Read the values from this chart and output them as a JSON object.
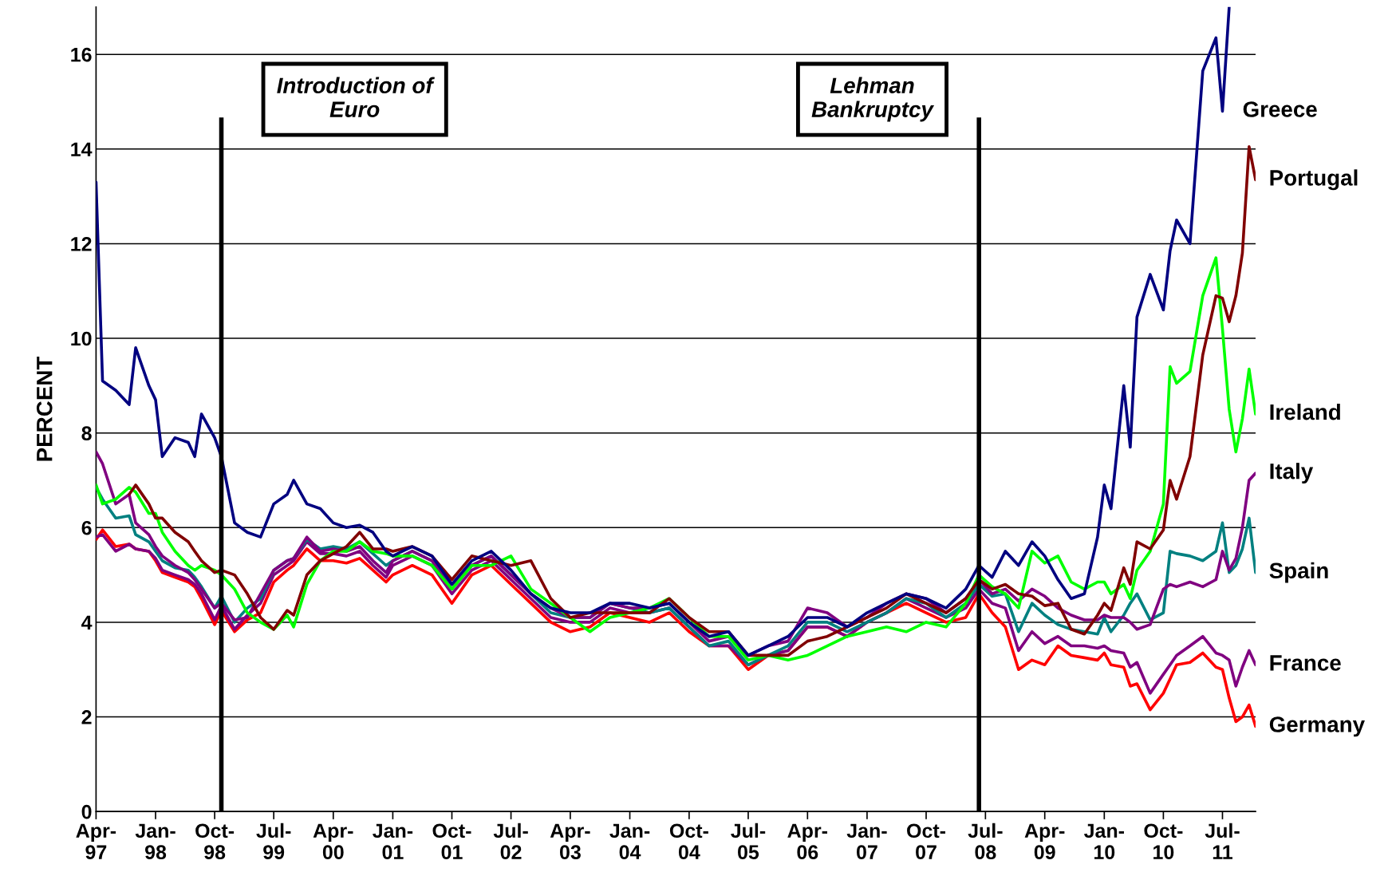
{
  "chart_data": {
    "type": "line",
    "ylabel": "PERCENT",
    "x": [
      "1997-04",
      "1997-05",
      "1997-07",
      "1997-09",
      "1997-10",
      "1997-12",
      "1998-01",
      "1998-02",
      "1998-04",
      "1998-06",
      "1998-07",
      "1998-08",
      "1998-10",
      "1998-11",
      "1999-01",
      "1999-03",
      "1999-05",
      "1999-07",
      "1999-09",
      "1999-10",
      "1999-12",
      "2000-02",
      "2000-04",
      "2000-06",
      "2000-08",
      "2000-10",
      "2000-12",
      "2001-01",
      "2001-04",
      "2001-07",
      "2001-10",
      "2002-01",
      "2002-04",
      "2002-07",
      "2002-10",
      "2003-01",
      "2003-04",
      "2003-07",
      "2003-10",
      "2004-01",
      "2004-04",
      "2004-07",
      "2004-10",
      "2005-01",
      "2005-04",
      "2005-07",
      "2005-10",
      "2006-01",
      "2006-04",
      "2006-07",
      "2006-10",
      "2007-01",
      "2007-04",
      "2007-07",
      "2007-10",
      "2008-01",
      "2008-04",
      "2008-06",
      "2008-08",
      "2008-10",
      "2008-12",
      "2009-02",
      "2009-04",
      "2009-06",
      "2009-08",
      "2009-10",
      "2009-12",
      "2010-01",
      "2010-02",
      "2010-04",
      "2010-05",
      "2010-06",
      "2010-08",
      "2010-10",
      "2010-11",
      "2010-12",
      "2011-02",
      "2011-04",
      "2011-06",
      "2011-07",
      "2011-08",
      "2011-09",
      "2011-10",
      "2011-11",
      "2011-12"
    ],
    "series": [
      {
        "name": "Greece",
        "color": "#000080",
        "values": [
          13.3,
          9.1,
          8.9,
          8.6,
          9.8,
          9.0,
          8.7,
          7.5,
          7.9,
          7.8,
          7.5,
          8.4,
          7.9,
          7.5,
          6.1,
          5.9,
          5.8,
          6.5,
          6.7,
          7.0,
          6.5,
          6.4,
          6.1,
          6.0,
          6.05,
          5.9,
          5.5,
          5.4,
          5.6,
          5.4,
          4.8,
          5.3,
          5.5,
          5.1,
          4.6,
          4.3,
          4.2,
          4.2,
          4.4,
          4.4,
          4.3,
          4.4,
          4.0,
          3.7,
          3.8,
          3.3,
          3.5,
          3.7,
          4.1,
          4.1,
          3.9,
          4.2,
          4.4,
          4.6,
          4.5,
          4.3,
          4.7,
          5.2,
          4.95,
          5.5,
          5.2,
          5.7,
          5.4,
          4.9,
          4.5,
          4.6,
          5.8,
          6.9,
          6.4,
          9.0,
          7.7,
          10.45,
          11.35,
          10.6,
          11.85,
          12.5,
          12.0,
          15.65,
          16.35,
          14.8,
          17,
          null,
          null,
          null,
          null
        ]
      },
      {
        "name": "Portugal",
        "color": "#800000",
        "values": [
          null,
          null,
          null,
          6.7,
          6.9,
          6.5,
          6.2,
          6.2,
          5.9,
          5.7,
          5.5,
          5.3,
          5.05,
          5.1,
          5.0,
          4.6,
          4.1,
          3.85,
          4.25,
          4.15,
          5.0,
          5.3,
          5.45,
          5.6,
          5.9,
          5.55,
          5.55,
          5.5,
          5.6,
          5.4,
          4.9,
          5.4,
          5.3,
          5.2,
          5.3,
          4.5,
          4.1,
          4.2,
          4.2,
          4.2,
          4.2,
          4.5,
          4.1,
          3.8,
          3.8,
          3.3,
          3.3,
          3.3,
          3.6,
          3.7,
          3.9,
          4.1,
          4.3,
          4.6,
          4.4,
          4.2,
          4.5,
          4.9,
          4.7,
          4.8,
          4.6,
          4.55,
          4.35,
          4.4,
          3.85,
          3.75,
          4.15,
          4.4,
          4.25,
          5.15,
          4.8,
          5.7,
          5.55,
          5.95,
          7.0,
          6.6,
          7.5,
          9.65,
          10.9,
          10.85,
          10.35,
          10.9,
          11.8,
          14.05,
          13.35
        ]
      },
      {
        "name": "Ireland",
        "color": "#00ff00",
        "values": [
          6.9,
          6.5,
          6.6,
          6.85,
          6.75,
          6.3,
          6.3,
          5.9,
          5.5,
          5.2,
          5.1,
          5.2,
          5.1,
          5.0,
          4.7,
          4.2,
          4.0,
          3.85,
          4.15,
          3.9,
          4.8,
          5.3,
          5.5,
          5.5,
          5.7,
          5.5,
          5.45,
          5.4,
          5.4,
          5.2,
          4.7,
          5.2,
          5.2,
          5.4,
          4.7,
          4.4,
          4.1,
          3.8,
          4.1,
          4.2,
          4.3,
          4.5,
          4.1,
          3.7,
          3.7,
          3.2,
          3.3,
          3.2,
          3.3,
          3.5,
          3.7,
          3.8,
          3.9,
          3.8,
          4.0,
          3.9,
          4.4,
          5.0,
          4.75,
          4.6,
          4.3,
          5.5,
          5.25,
          5.4,
          4.85,
          4.7,
          4.85,
          4.85,
          4.6,
          4.8,
          4.5,
          5.1,
          5.5,
          6.5,
          9.4,
          9.05,
          9.3,
          10.9,
          11.7,
          10.2,
          8.5,
          7.6,
          8.3,
          9.35,
          8.4
        ]
      },
      {
        "name": "Italy",
        "color": "#800080",
        "values": [
          7.6,
          7.35,
          6.5,
          6.7,
          6.1,
          5.85,
          5.6,
          5.4,
          5.2,
          5.05,
          4.9,
          4.7,
          4.3,
          4.4,
          4.05,
          4.1,
          4.6,
          5.1,
          5.3,
          5.35,
          5.8,
          5.5,
          5.55,
          5.5,
          5.6,
          5.3,
          5.05,
          5.3,
          5.5,
          5.3,
          4.8,
          5.2,
          5.4,
          5.0,
          4.6,
          4.3,
          4.1,
          4.1,
          4.4,
          4.3,
          4.3,
          4.4,
          4.0,
          3.6,
          3.7,
          3.3,
          3.5,
          3.6,
          4.3,
          4.2,
          3.9,
          4.1,
          4.4,
          4.6,
          4.5,
          4.2,
          4.5,
          4.9,
          4.6,
          4.7,
          4.45,
          4.7,
          4.55,
          4.3,
          4.15,
          4.05,
          4.05,
          4.15,
          4.1,
          4.1,
          4.0,
          3.85,
          3.95,
          4.7,
          4.8,
          4.75,
          4.85,
          4.75,
          4.9,
          5.5,
          5.1,
          5.35,
          6.0,
          7.0,
          7.15
        ]
      },
      {
        "name": "Spain",
        "color": "#008080",
        "values": [
          6.85,
          6.6,
          6.2,
          6.25,
          5.85,
          5.7,
          5.5,
          5.3,
          5.15,
          5.1,
          4.95,
          4.75,
          4.3,
          4.55,
          4.0,
          4.3,
          4.5,
          5.1,
          5.3,
          5.35,
          5.75,
          5.55,
          5.6,
          5.55,
          5.7,
          5.45,
          5.2,
          5.3,
          5.5,
          5.3,
          4.7,
          5.2,
          5.4,
          5.0,
          4.6,
          4.2,
          4.1,
          4.1,
          4.4,
          4.3,
          4.2,
          4.3,
          3.9,
          3.5,
          3.6,
          3.1,
          3.3,
          3.5,
          4.0,
          4.0,
          3.8,
          4.0,
          4.2,
          4.5,
          4.4,
          4.1,
          4.4,
          4.8,
          4.55,
          4.6,
          3.8,
          4.4,
          4.15,
          3.95,
          3.85,
          3.8,
          3.75,
          4.1,
          3.8,
          4.15,
          4.4,
          4.6,
          4.05,
          4.2,
          5.5,
          5.45,
          5.4,
          5.3,
          5.5,
          6.1,
          5.05,
          5.2,
          5.55,
          6.2,
          5.05
        ]
      },
      {
        "name": "France",
        "color": "#800080",
        "values": [
          5.8,
          5.85,
          5.5,
          5.65,
          5.55,
          5.5,
          5.35,
          5.1,
          5.0,
          4.9,
          4.8,
          4.6,
          4.05,
          4.35,
          3.85,
          4.15,
          4.4,
          5.0,
          5.2,
          5.3,
          5.7,
          5.45,
          5.45,
          5.4,
          5.5,
          5.2,
          4.95,
          5.2,
          5.4,
          5.2,
          4.6,
          5.1,
          5.3,
          4.9,
          4.5,
          4.1,
          4.0,
          4.0,
          4.3,
          4.2,
          4.2,
          4.3,
          3.9,
          3.5,
          3.5,
          3.1,
          3.3,
          3.4,
          3.9,
          3.9,
          3.7,
          4.0,
          4.2,
          4.5,
          4.3,
          4.1,
          4.3,
          4.7,
          4.4,
          4.3,
          3.4,
          3.8,
          3.55,
          3.7,
          3.5,
          3.5,
          3.45,
          3.5,
          3.4,
          3.35,
          3.05,
          3.15,
          2.5,
          2.9,
          3.1,
          3.3,
          3.5,
          3.7,
          3.35,
          3.3,
          3.2,
          2.65,
          3.05,
          3.4,
          3.1
        ]
      },
      {
        "name": "Germany",
        "color": "#ff0000",
        "values": [
          5.75,
          5.95,
          5.6,
          5.65,
          5.55,
          5.5,
          5.3,
          5.05,
          4.95,
          4.85,
          4.75,
          4.5,
          3.95,
          4.25,
          3.8,
          4.05,
          4.2,
          4.85,
          5.1,
          5.2,
          5.55,
          5.3,
          5.3,
          5.25,
          5.35,
          5.1,
          4.85,
          5.0,
          5.2,
          5.0,
          4.4,
          5.0,
          5.2,
          4.8,
          4.4,
          4.0,
          3.8,
          3.9,
          4.2,
          4.1,
          4.0,
          4.2,
          3.8,
          3.5,
          3.5,
          3.0,
          3.3,
          3.4,
          3.9,
          3.9,
          3.7,
          4.0,
          4.2,
          4.4,
          4.2,
          4.0,
          4.1,
          4.6,
          4.2,
          3.9,
          3.0,
          3.2,
          3.1,
          3.5,
          3.3,
          3.25,
          3.2,
          3.35,
          3.1,
          3.05,
          2.65,
          2.7,
          2.15,
          2.5,
          2.8,
          3.1,
          3.15,
          3.35,
          3.05,
          3.0,
          2.4,
          1.9,
          2.0,
          2.25,
          1.8
        ]
      }
    ],
    "xlim": [
      "1997-04",
      "2011-12"
    ],
    "xticks": [
      {
        "value": "1997-04",
        "label": "Apr-\n97"
      },
      {
        "value": "1998-01",
        "label": "Jan-\n98"
      },
      {
        "value": "1998-10",
        "label": "Oct-\n98"
      },
      {
        "value": "1999-07",
        "label": "Jul-\n99"
      },
      {
        "value": "2000-04",
        "label": "Apr-\n00"
      },
      {
        "value": "2001-01",
        "label": "Jan-\n01"
      },
      {
        "value": "2001-10",
        "label": "Oct-\n01"
      },
      {
        "value": "2002-07",
        "label": "Jul-\n02"
      },
      {
        "value": "2003-04",
        "label": "Apr-\n03"
      },
      {
        "value": "2004-01",
        "label": "Jan-\n04"
      },
      {
        "value": "2004-10",
        "label": "Oct-\n04"
      },
      {
        "value": "2005-07",
        "label": "Jul-\n05"
      },
      {
        "value": "2006-04",
        "label": "Apr-\n06"
      },
      {
        "value": "2007-01",
        "label": "Jan-\n07"
      },
      {
        "value": "2007-10",
        "label": "Oct-\n07"
      },
      {
        "value": "2008-07",
        "label": "Jul-\n08"
      },
      {
        "value": "2009-04",
        "label": "Apr-\n09"
      },
      {
        "value": "2010-01",
        "label": "Jan-\n10"
      },
      {
        "value": "2010-10",
        "label": "Oct-\n10"
      },
      {
        "value": "2011-07",
        "label": "Jul-\n11"
      }
    ],
    "ylim": [
      0,
      17
    ],
    "yticks": [
      0,
      2,
      4,
      6,
      8,
      10,
      12,
      14,
      16
    ],
    "grid": "y",
    "marker": "none",
    "line_style": "solid",
    "ref_lines": [
      {
        "axis": "x",
        "value": "1998-11",
        "label": "Introduction of\nEuro",
        "color": "#000000"
      },
      {
        "axis": "x",
        "value": "2008-06",
        "label": "Lehman\nBankruptcy",
        "color": "#000000"
      }
    ]
  }
}
